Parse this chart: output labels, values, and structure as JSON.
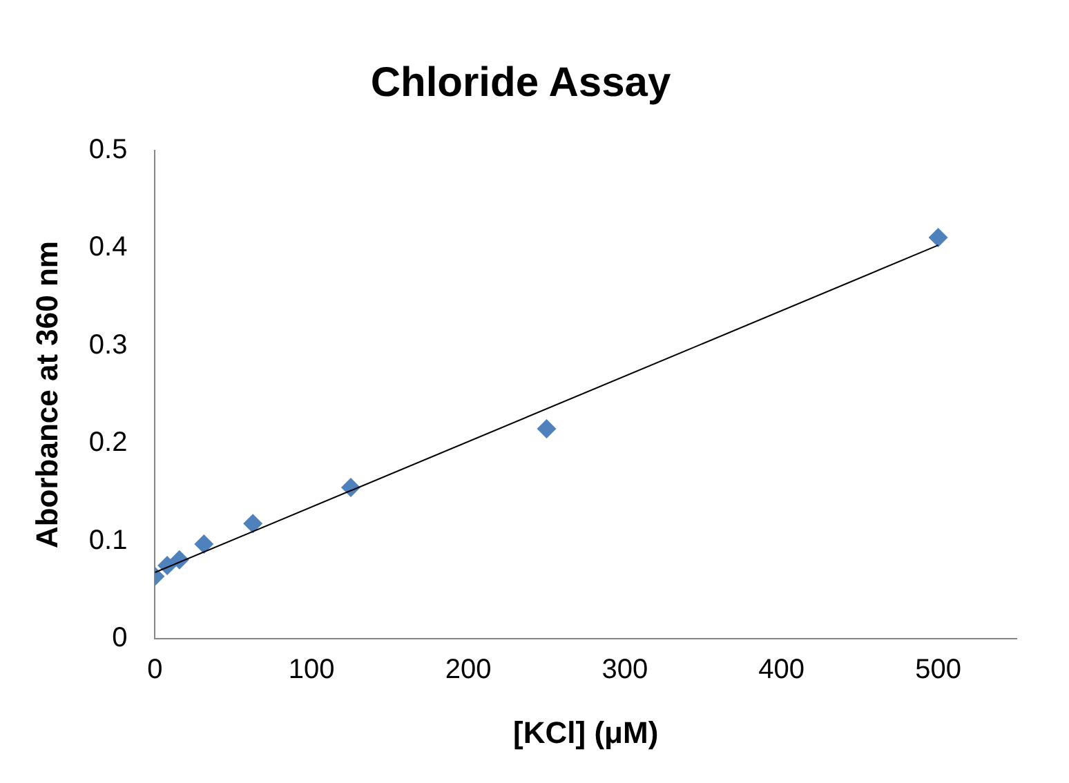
{
  "chart_data": {
    "type": "scatter",
    "title": "Chloride Assay",
    "xlabel": "[KCl] (μM)",
    "ylabel": "Aborbance at 360 nm",
    "xlim": [
      0,
      550
    ],
    "xticks": [
      0,
      100,
      200,
      300,
      400,
      500
    ],
    "ylim": [
      0,
      0.5
    ],
    "yticks": [
      0,
      0.1,
      0.2,
      0.3,
      0.4,
      0.5
    ],
    "series": [
      {
        "type": "scatter",
        "color": "#4f81bd",
        "marker": "diamond",
        "x": [
          0,
          7.8,
          15.6,
          31.25,
          62.5,
          125,
          250,
          500
        ],
        "values": [
          0.064,
          0.075,
          0.081,
          0.097,
          0.118,
          0.155,
          0.215,
          0.411
        ]
      },
      {
        "type": "line",
        "color": "#000000",
        "marker": "none",
        "x": [
          0,
          500
        ],
        "values": [
          0.068,
          0.403
        ]
      }
    ]
  }
}
